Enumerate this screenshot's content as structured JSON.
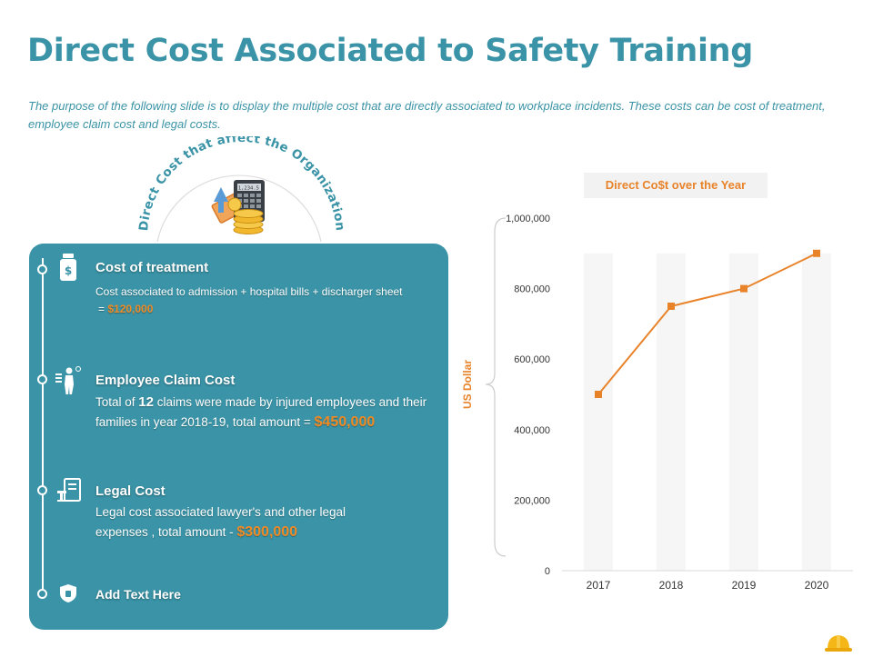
{
  "slide": {
    "title": "Direct Cost Associated to Safety Training",
    "subtitle": "The purpose of the following slide is to display the multiple cost that are directly associated to workplace incidents. These costs can be cost of treatment, employee claim cost and legal costs.",
    "arc_label": "Direct Cost that affect the Organization"
  },
  "calculator_display": "1,234.5",
  "items": [
    {
      "icon": "medicine-bottle-icon",
      "title": "Cost  of treatment",
      "desc": "Cost associated to admission + hospital bills + discharger sheet",
      "desc_prefix": "= ",
      "amount": "$120,000"
    },
    {
      "icon": "injured-worker-icon",
      "title": "Employee Claim Cost",
      "desc_a": "Total of ",
      "highlight": "12",
      "desc_b": " claims were made by injured employees and their families in year 2018-19, total amount = ",
      "amount": "$450,000"
    },
    {
      "icon": "legal-document-icon",
      "title": "Legal Cost",
      "desc": "Legal cost associated lawyer's and other legal expenses , total amount - ",
      "amount": "$300,000"
    },
    {
      "icon": "shield-icon",
      "title": "Add Text Here"
    }
  ],
  "colors": {
    "teal": "#3a93a6",
    "orange": "#e8832a",
    "amount": "#f08a24"
  },
  "chart_data": {
    "type": "line",
    "title": "Direct Co$t over the Year",
    "ylabel": "US Dollar",
    "xlabel": "",
    "categories": [
      "2017",
      "2018",
      "2019",
      "2020"
    ],
    "values": [
      500000,
      750000,
      800000,
      900000
    ],
    "ylim": [
      0,
      1000000
    ],
    "yticks": [
      0,
      200000,
      400000,
      600000,
      800000,
      1000000
    ],
    "ytick_labels": [
      "0",
      "200,000",
      "400,000",
      "600,000",
      "800,000",
      "1,000,000"
    ],
    "grid": false,
    "legend": "none",
    "marker": "square",
    "line_color": "#e8832a"
  }
}
